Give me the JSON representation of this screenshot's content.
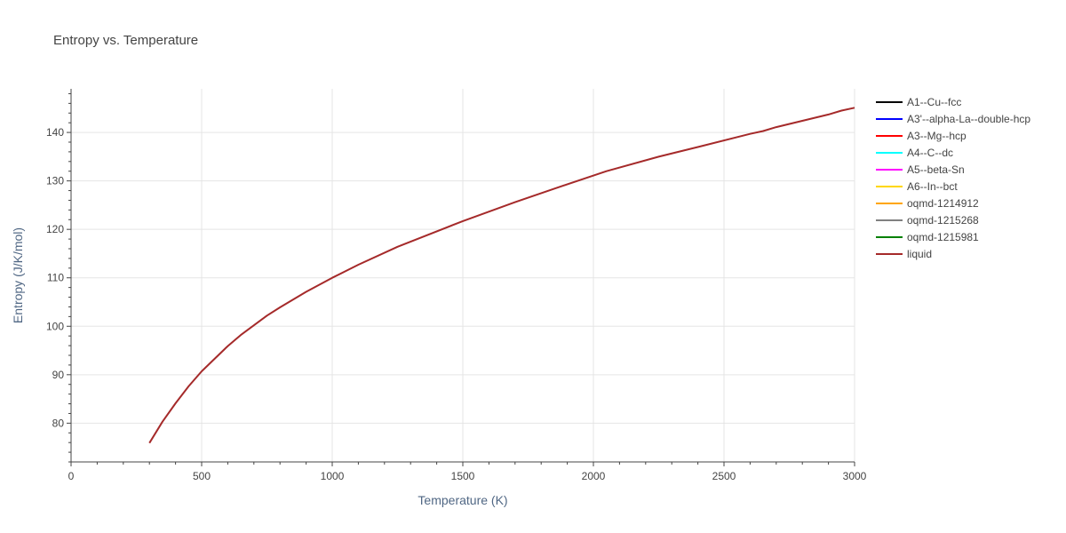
{
  "chart_data": {
    "type": "line",
    "title": "Entropy vs. Temperature",
    "xlabel": "Temperature (K)",
    "ylabel": "Entropy (J/K/mol)",
    "xlim": [
      0,
      3000
    ],
    "ylim": [
      72,
      149
    ],
    "xticks": [
      0,
      500,
      1000,
      1500,
      2000,
      2500,
      3000
    ],
    "yticks": [
      80,
      90,
      100,
      110,
      120,
      130,
      140
    ],
    "grid": true,
    "legend_position": "right",
    "legend": [
      {
        "name": "A1--Cu--fcc",
        "color": "#000000"
      },
      {
        "name": "A3'--alpha-La--double-hcp",
        "color": "#0000ff"
      },
      {
        "name": "A3--Mg--hcp",
        "color": "#ff0000"
      },
      {
        "name": "A4--C--dc",
        "color": "#00ffff"
      },
      {
        "name": "A5--beta-Sn",
        "color": "#ff00ff"
      },
      {
        "name": "A6--In--bct",
        "color": "#ffd700"
      },
      {
        "name": "oqmd-1214912",
        "color": "#ffa500"
      },
      {
        "name": "oqmd-1215268",
        "color": "#808080"
      },
      {
        "name": "oqmd-1215981",
        "color": "#008000"
      },
      {
        "name": "liquid",
        "color": "#a52a2a"
      }
    ],
    "series": [
      {
        "name": "liquid",
        "color": "#a52a2a",
        "x": [
          300,
          350,
          400,
          450,
          500,
          600,
          650,
          750,
          800,
          900,
          1000,
          1100,
          1250,
          1500,
          1700,
          1850,
          2050,
          2250,
          2400,
          2600,
          2650,
          2700,
          2900,
          2950,
          3000
        ],
        "y": [
          75.9,
          80.3,
          84.1,
          87.6,
          90.7,
          95.9,
          98.2,
          102.2,
          103.9,
          107.1,
          110.0,
          112.7,
          116.4,
          121.7,
          125.6,
          128.4,
          132.0,
          135.0,
          137.0,
          139.7,
          140.3,
          141.1,
          143.7,
          144.5,
          145.1
        ]
      }
    ]
  }
}
